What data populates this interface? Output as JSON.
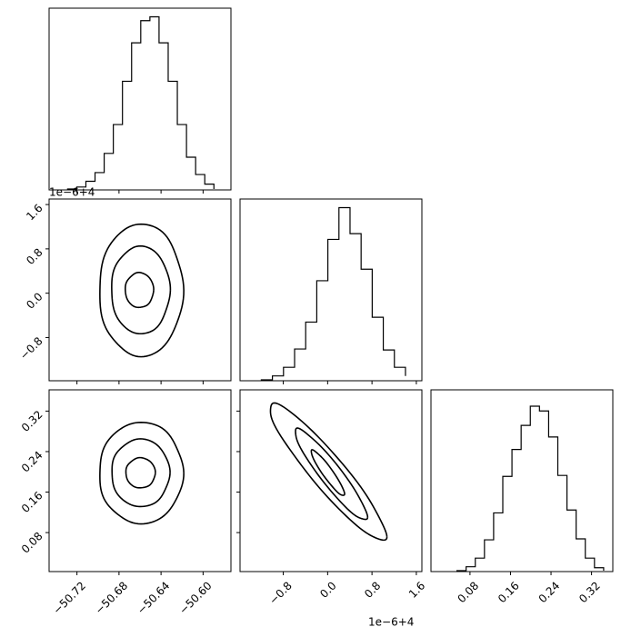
{
  "chart_data": {
    "type": "corner",
    "line_color": "#000000",
    "background": "#ffffff",
    "offset_texts": {
      "row2_y": "1e−6+4",
      "col2_x": "1e−6+4"
    },
    "parameters": [
      {
        "axis_range": [
          -50.7465,
          -50.5735
        ],
        "ticks": [
          -50.72,
          -50.68,
          -50.64,
          -50.6
        ],
        "tick_labels": [
          "−50.72",
          "−50.68",
          "−50.64",
          "−50.60"
        ]
      },
      {
        "axis_range": [
          -1.58,
          1.7
        ],
        "ticks": [
          -0.8,
          0.0,
          0.8,
          1.6
        ],
        "tick_labels": [
          "−0.8",
          "0.0",
          "0.8",
          "1.6"
        ]
      },
      {
        "axis_range": [
          0.003,
          0.362
        ],
        "ticks": [
          0.08,
          0.16,
          0.24,
          0.32
        ],
        "tick_labels": [
          "0.08",
          "0.16",
          "0.24",
          "0.32"
        ]
      }
    ],
    "histograms": [
      {
        "param": 0,
        "bin_edges": [
          -50.7289,
          -50.7202,
          -50.7115,
          -50.7028,
          -50.6941,
          -50.6854,
          -50.6767,
          -50.668,
          -50.6593,
          -50.6506,
          -50.6419,
          -50.6332,
          -50.6245,
          -50.6158,
          -50.6071,
          -50.5984,
          -50.5897
        ],
        "counts": [
          1,
          3,
          9,
          18,
          38,
          68,
          113,
          153,
          176,
          180,
          153,
          113,
          68,
          34,
          16,
          6,
          1
        ],
        "plot_max": 189
      },
      {
        "param": 1,
        "bin_edges": [
          -1.196,
          -0.996,
          -0.796,
          -0.596,
          -0.396,
          -0.196,
          0.004,
          0.204,
          0.404,
          0.604,
          0.804,
          1.004,
          1.204,
          1.404
        ],
        "counts": [
          1,
          5,
          14,
          33,
          61,
          104,
          147,
          180,
          153,
          116,
          66,
          32,
          14,
          5
        ],
        "plot_max": 189
      },
      {
        "param": 2,
        "bin_edges": [
          0.0543,
          0.0724,
          0.0905,
          0.1086,
          0.1267,
          0.1448,
          0.1629,
          0.181,
          0.1991,
          0.2172,
          0.2353,
          0.2534,
          0.2715,
          0.2896,
          0.3077,
          0.3258,
          0.3439
        ],
        "counts": [
          1,
          5,
          14,
          33,
          61,
          99,
          127,
          152,
          172,
          167,
          140,
          100,
          64,
          34,
          14,
          4,
          1
        ],
        "plot_max": 189
      }
    ],
    "contours": [
      {
        "x_param": 0,
        "y_param": 1,
        "levels": [
          {
            "center": [
              -50.6606,
              0.0554
            ],
            "rx": 0.0135,
            "ry": 0.315,
            "rho": 0.0
          },
          {
            "center": [
              -50.6595,
              0.0554
            ],
            "rx": 0.0279,
            "ry": 0.792,
            "rho": 0.0
          },
          {
            "center": [
              -50.659,
              0.0554
            ],
            "rx": 0.0399,
            "ry": 1.197,
            "rho": 0.0
          }
        ]
      },
      {
        "x_param": 0,
        "y_param": 2,
        "levels": [
          {
            "center": [
              -50.6595,
              0.1979
            ],
            "rx": 0.014,
            "ry": 0.0298,
            "rho": 0.0
          },
          {
            "center": [
              -50.6595,
              0.1979
            ],
            "rx": 0.0276,
            "ry": 0.0669,
            "rho": 0.0
          },
          {
            "center": [
              -50.659,
              0.1979
            ],
            "rx": 0.0399,
            "ry": 0.1003,
            "rho": 0.0
          }
        ]
      },
      {
        "x_param": 1,
        "y_param": 2,
        "levels": [
          {
            "center": [
              0.004,
              0.1979
            ],
            "rx": 0.3,
            "ry": 0.045,
            "rho": -0.93
          },
          {
            "center": [
              0.06,
              0.195
            ],
            "rx": 0.65,
            "ry": 0.09,
            "rho": -0.93
          },
          {
            "center": [
              0.0,
              0.2
            ],
            "rx": 1.05,
            "ry": 0.135,
            "rho": -0.93
          }
        ]
      }
    ]
  }
}
